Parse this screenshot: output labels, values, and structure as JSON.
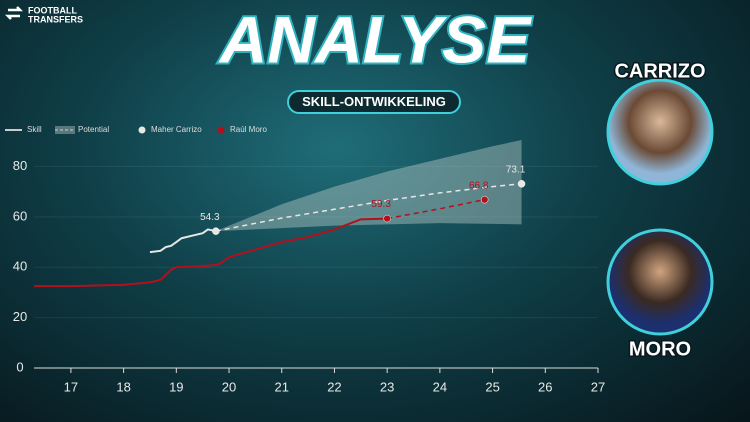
{
  "header": {
    "logo": [
      "FOOTBALL",
      "TRANSFERS"
    ],
    "title": "ANALYSE",
    "subtitle": "SKILL-ONTWIKKELING"
  },
  "players": [
    "CARRIZO",
    "MORO"
  ],
  "chart_data": {
    "type": "line",
    "style_legend": [
      "Skill",
      "Potential"
    ],
    "xlim": [
      16.3,
      27
    ],
    "xticks": [
      17,
      18,
      19,
      20,
      21,
      22,
      23,
      24,
      25,
      26,
      27
    ],
    "ylim": [
      0,
      86
    ],
    "yticks": [
      0,
      20,
      40,
      60,
      80
    ],
    "grid": true,
    "series": [
      {
        "name": "Maher Carrizo",
        "color": "#e6e6e6",
        "x": [
          18.5,
          18.7,
          18.8,
          18.9,
          19.0,
          19.1,
          19.3,
          19.5,
          19.6,
          19.75
        ],
        "values": [
          46,
          46.5,
          48,
          48.5,
          50,
          51.5,
          52.5,
          53.5,
          55,
          54.3
        ],
        "potential_x": [
          19.75,
          21,
          22,
          23,
          24,
          25,
          25.55
        ],
        "potential_values": [
          54.3,
          59.5,
          63,
          66.5,
          69.5,
          72,
          73.1
        ],
        "potential_range": {
          "x": [
            19.75,
            21,
            22,
            23,
            24,
            25,
            25.55
          ],
          "upper": [
            54.3,
            65,
            72,
            78,
            83,
            88,
            90.5
          ],
          "lower": [
            54.3,
            55.5,
            56.5,
            57,
            57.5,
            57.2,
            57
          ]
        }
      },
      {
        "name": "Raúl Moro",
        "color": "#b3101d",
        "x": [
          16.3,
          17,
          18,
          18.5,
          18.7,
          18.8,
          18.9,
          19,
          19.5,
          19.8,
          20,
          20.5,
          21,
          21.5,
          22,
          22.5,
          23
        ],
        "values": [
          32.5,
          32.5,
          33,
          34,
          35,
          37,
          39,
          40,
          40.5,
          41,
          44,
          47,
          50,
          52,
          55,
          59,
          59.3
        ],
        "potential_x": [
          23,
          24,
          24.85
        ],
        "potential_values": [
          59.3,
          63.2,
          66.8
        ]
      }
    ]
  }
}
